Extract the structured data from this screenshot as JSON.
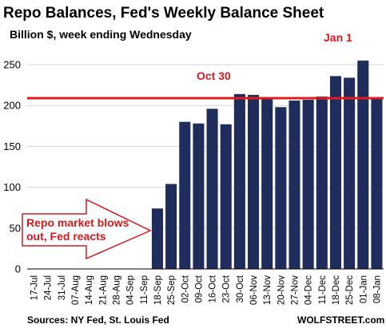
{
  "chart_data": {
    "type": "bar",
    "title": "Repo Balances, Fed's Weekly Balance Sheet",
    "subtitle": "Billion $, week ending Wednesday",
    "categories": [
      "17-Jul",
      "24-Jul",
      "31-Jul",
      "07-Aug",
      "14-Aug",
      "21-Aug",
      "28-Aug",
      "04-Sep",
      "11-Sep",
      "18-Sep",
      "25-Sep",
      "02-Oct",
      "09-Oct",
      "16-Oct",
      "23-Oct",
      "30-Oct",
      "06-Nov",
      "13-Nov",
      "20-Nov",
      "27-Nov",
      "04-Dec",
      "11-Dec",
      "18-Dec",
      "25-Dec",
      "01-Jan",
      "08-Jan"
    ],
    "values": [
      0,
      0,
      0,
      0,
      0,
      0,
      0,
      0,
      0,
      74,
      104,
      180,
      178,
      196,
      177,
      214,
      213,
      209,
      198,
      206,
      207,
      211,
      236,
      234,
      255,
      209
    ],
    "ylim": [
      0,
      260
    ],
    "yticks": [
      0,
      50,
      100,
      150,
      200,
      250
    ],
    "grid": true,
    "bar_color": "#1f2d5c",
    "reference_line": {
      "value": 209,
      "color": "#e31a1c"
    },
    "annotations": [
      {
        "text": "Oct 30",
        "color": "#d7191c"
      },
      {
        "text": "Jan 1",
        "color": "#d7191c"
      },
      {
        "lines": [
          "Repo market blows",
          "out, Fed reacts"
        ],
        "color": "#d7191c",
        "shape": "arrow-right"
      }
    ],
    "source": "Sources: NY Fed, St. Louis Fed",
    "credit": "WOLFSTREET.com"
  }
}
